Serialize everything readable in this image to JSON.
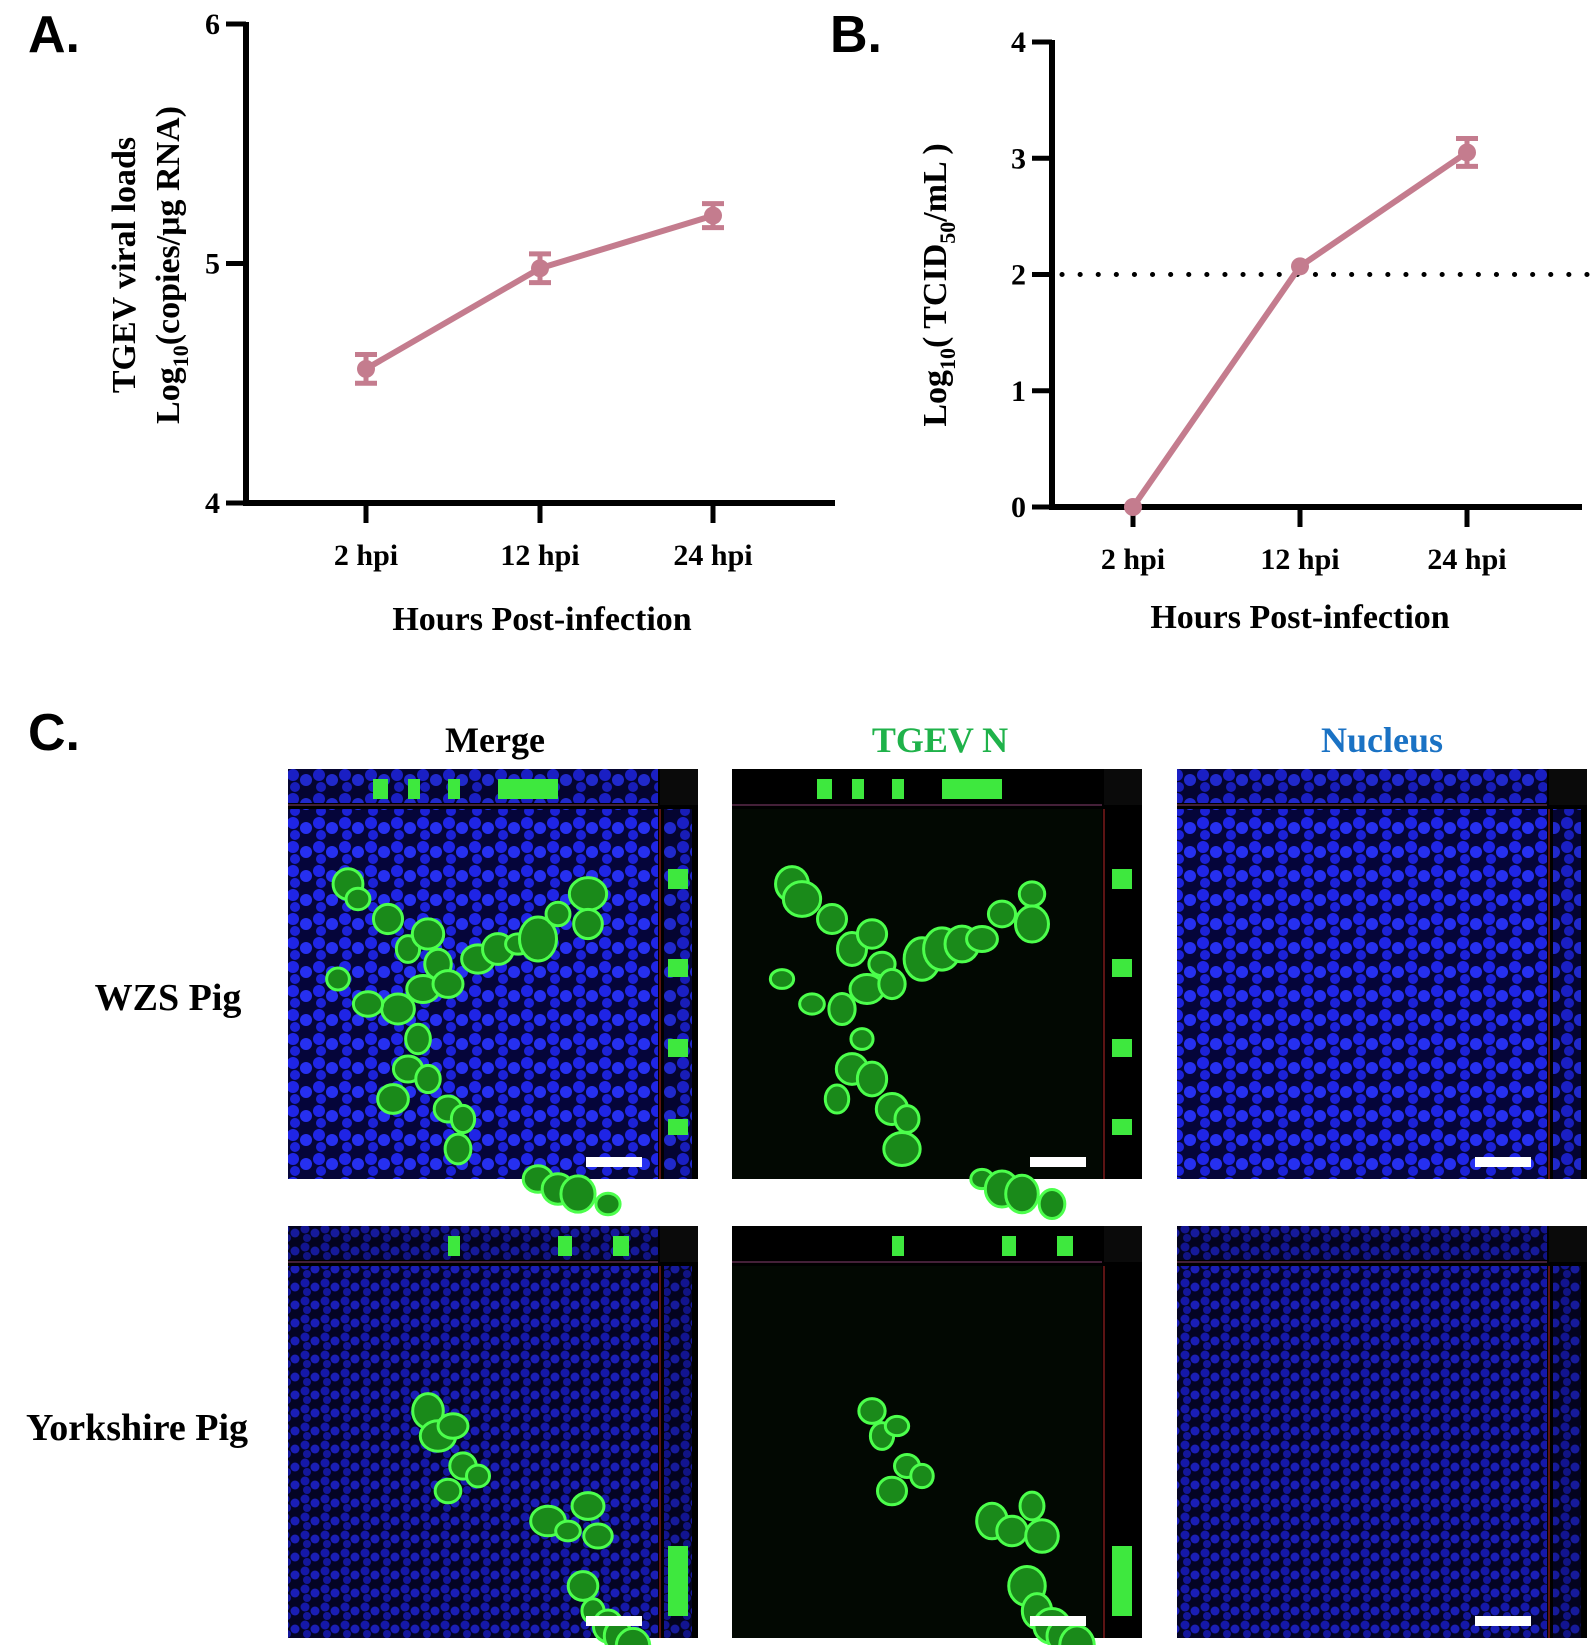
{
  "chart_data": [
    {
      "type": "line",
      "panel_label": "A.",
      "title": "",
      "xlabel": "Hours Post-infection",
      "ylabel_line1": "TGEV viral loads",
      "ylabel_line2_pre": "Log",
      "ylabel_line2_sub": "10",
      "ylabel_line2_post": "(copies/μg RNA)",
      "categories": [
        "2 hpi",
        "12 hpi",
        "24 hpi"
      ],
      "ylim": [
        4,
        6
      ],
      "yticks": [
        "4",
        "5",
        "6"
      ],
      "series": [
        {
          "values": [
            4.56,
            4.98,
            5.2
          ],
          "errors": [
            0.06,
            0.06,
            0.05
          ]
        }
      ],
      "grid": false,
      "color": "#c47c8e"
    },
    {
      "type": "line",
      "panel_label": "B.",
      "title": "",
      "xlabel": "Hours Post-infection",
      "ylabel_pre": "Log",
      "ylabel_sub1": "10",
      "ylabel_mid": "( TCID",
      "ylabel_sub2": "50",
      "ylabel_post": "/mL )",
      "categories": [
        "2 hpi",
        "12 hpi",
        "24 hpi"
      ],
      "ylim": [
        0,
        4
      ],
      "yticks": [
        "0",
        "1",
        "2",
        "3",
        "4"
      ],
      "series": [
        {
          "values": [
            0,
            2.07,
            3.05
          ],
          "errors": [
            0,
            0,
            0.12
          ]
        }
      ],
      "reference_line": 2,
      "grid": false,
      "color": "#c47c8e"
    }
  ],
  "panel_c": {
    "label": "C.",
    "columns": [
      {
        "label": "Merge",
        "color": "#000000"
      },
      {
        "label": "TGEV N",
        "color": "#1fb24a"
      },
      {
        "label": "Nucleus",
        "color": "#1a72c4"
      }
    ],
    "rows": [
      "WZS Pig",
      "Yorkshire Pig"
    ]
  }
}
